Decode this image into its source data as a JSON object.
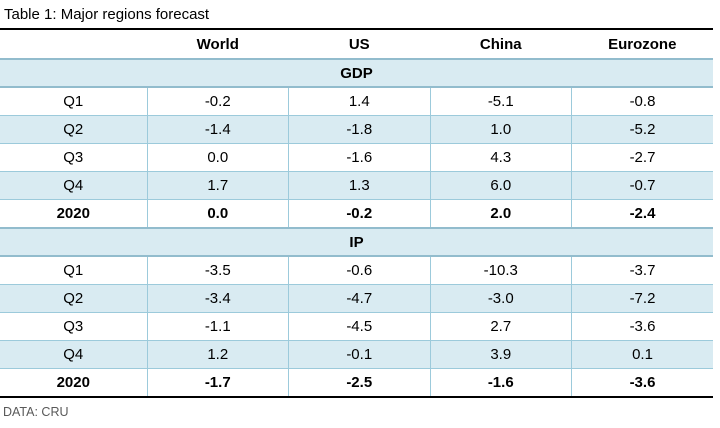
{
  "title": "Table 1: Major regions forecast",
  "footer": {
    "source": "DATA: CRU"
  },
  "colors": {
    "row_fill": "#D9EBF2",
    "cell_border": "#9CCADB",
    "band_border": "#92BCCD",
    "rule": "#000000",
    "footer_text": "#595959"
  },
  "table": {
    "columns": [
      "",
      "World",
      "US",
      "China",
      "Eurozone"
    ],
    "sections": [
      {
        "label": "GDP",
        "rows": [
          {
            "label": "Q1",
            "values": [
              "-0.2",
              "1.4",
              "-5.1",
              "-0.8"
            ]
          },
          {
            "label": "Q2",
            "values": [
              "-1.4",
              "-1.8",
              "1.0",
              "-5.2"
            ]
          },
          {
            "label": "Q3",
            "values": [
              "0.0",
              "-1.6",
              "4.3",
              "-2.7"
            ]
          },
          {
            "label": "Q4",
            "values": [
              "1.7",
              "1.3",
              "6.0",
              "-0.7"
            ]
          },
          {
            "label": "2020",
            "values": [
              "0.0",
              "-0.2",
              "2.0",
              "-2.4"
            ]
          }
        ]
      },
      {
        "label": "IP",
        "rows": [
          {
            "label": "Q1",
            "values": [
              "-3.5",
              "-0.6",
              "-10.3",
              "-3.7"
            ]
          },
          {
            "label": "Q2",
            "values": [
              "-3.4",
              "-4.7",
              "-3.0",
              "-7.2"
            ]
          },
          {
            "label": "Q3",
            "values": [
              "-1.1",
              "-4.5",
              "2.7",
              "-3.6"
            ]
          },
          {
            "label": "Q4",
            "values": [
              "1.2",
              "-0.1",
              "3.9",
              "0.1"
            ]
          },
          {
            "label": "2020",
            "values": [
              "-1.7",
              "-2.5",
              "-1.6",
              "-3.6"
            ]
          }
        ]
      }
    ]
  },
  "chart_data": {
    "type": "table",
    "title": "Table 1: Major regions forecast",
    "categories": [
      "Q1",
      "Q2",
      "Q3",
      "Q4",
      "2020"
    ],
    "series": [
      {
        "name": "GDP World",
        "values": [
          -0.2,
          -1.4,
          0.0,
          1.7,
          0.0
        ]
      },
      {
        "name": "GDP US",
        "values": [
          1.4,
          -1.8,
          -1.6,
          1.3,
          -0.2
        ]
      },
      {
        "name": "GDP China",
        "values": [
          -5.1,
          1.0,
          4.3,
          6.0,
          2.0
        ]
      },
      {
        "name": "GDP Eurozone",
        "values": [
          -0.8,
          -5.2,
          -2.7,
          -0.7,
          -2.4
        ]
      },
      {
        "name": "IP World",
        "values": [
          -3.5,
          -3.4,
          -1.1,
          1.2,
          -1.7
        ]
      },
      {
        "name": "IP US",
        "values": [
          -0.6,
          -4.7,
          -4.5,
          -0.1,
          -2.5
        ]
      },
      {
        "name": "IP China",
        "values": [
          -10.3,
          -3.0,
          2.7,
          3.9,
          -1.6
        ]
      },
      {
        "name": "IP Eurozone",
        "values": [
          -3.7,
          -7.2,
          -3.6,
          0.1,
          -3.6
        ]
      }
    ]
  }
}
